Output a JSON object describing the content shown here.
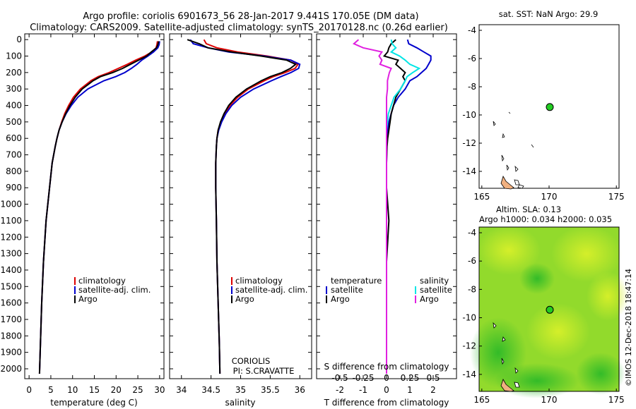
{
  "title": {
    "line1": "Argo profile: coriolis 6901673_56 28-Jan-2017 9.441S 170.05E (DM data)",
    "line2": "Climatology: CARS2009. Satellite-adjusted climatology: synTS_20170128.nc (0.26d earlier)"
  },
  "colors": {
    "climatology": "#dd0000",
    "satellite": "#0000cc",
    "argo": "#000000",
    "sal_sat": "#00e5e5",
    "sal_argo": "#e020e0",
    "land": "#f0b080",
    "marker": "#22cc22"
  },
  "depth_ticks": [
    "0",
    "100",
    "200",
    "300",
    "400",
    "500",
    "600",
    "700",
    "800",
    "900",
    "1000",
    "1100",
    "1200",
    "1300",
    "1400",
    "1500",
    "1600",
    "1700",
    "1800",
    "1900",
    "2000"
  ],
  "chart_data": [
    {
      "type": "line",
      "xlabel": "temperature (deg C)",
      "xlim": [
        -1,
        31
      ],
      "ylim": [
        2060,
        -35
      ],
      "xticks": [
        "0",
        "5",
        "10",
        "15",
        "20",
        "25",
        "30"
      ],
      "legend": [
        "climatology",
        "satellite-adj. clim.",
        "Argo"
      ],
      "series": [
        {
          "name": "climatology",
          "x": [
            29.5,
            29.4,
            29.2,
            28.2,
            26.6,
            24.5,
            22.6,
            20.5,
            18.4,
            15.9,
            14.2,
            11.8,
            10.2,
            9.1,
            8.2,
            7.5,
            6.9,
            6.4,
            6.0,
            5.3,
            4.7,
            3.9,
            3.3,
            2.9,
            2.6,
            2.4
          ],
          "y": [
            10,
            30,
            50,
            75,
            100,
            125,
            150,
            175,
            200,
            225,
            250,
            300,
            350,
            400,
            450,
            500,
            550,
            600,
            650,
            750,
            900,
            1100,
            1350,
            1600,
            1850,
            2030
          ]
        },
        {
          "name": "satellite-adj. clim.",
          "x": [
            30.0,
            29.9,
            29.6,
            28.6,
            27.3,
            25.9,
            24.8,
            23.5,
            22.0,
            19.9,
            17.2,
            13.5,
            11.2,
            9.7,
            8.5,
            7.6,
            6.9,
            6.4,
            6.0,
            5.3,
            4.7,
            3.9,
            3.3,
            2.9,
            2.6,
            2.4
          ],
          "y": [
            10,
            30,
            50,
            75,
            100,
            125,
            150,
            175,
            200,
            225,
            250,
            300,
            350,
            400,
            450,
            500,
            550,
            600,
            650,
            750,
            900,
            1100,
            1350,
            1600,
            1850,
            2030
          ]
        },
        {
          "name": "Argo",
          "x": [
            29.8,
            29.6,
            29.3,
            28.1,
            27.0,
            25.2,
            23.3,
            21.5,
            19.2,
            16.4,
            14.7,
            12.2,
            10.6,
            9.4,
            8.4,
            7.6,
            6.9,
            6.4,
            6.0,
            5.3,
            4.7,
            3.9,
            3.3,
            2.9,
            2.6,
            2.4
          ],
          "y": [
            10,
            30,
            50,
            75,
            100,
            125,
            150,
            175,
            200,
            225,
            250,
            300,
            350,
            400,
            450,
            500,
            550,
            600,
            650,
            750,
            900,
            1100,
            1350,
            1600,
            1850,
            2030
          ]
        }
      ]
    },
    {
      "type": "line",
      "xlabel": "salinity",
      "xlim": [
        33.8,
        36.2
      ],
      "ylim": [
        2060,
        -35
      ],
      "xticks": [
        "34",
        "34.5",
        "35",
        "35.5",
        "36"
      ],
      "legend": [
        "climatology",
        "satellite-adj. clim.",
        "Argo"
      ],
      "annotation": [
        "CORIOLIS",
        "PI: S.CRAVATTE"
      ],
      "series": [
        {
          "name": "climatology",
          "x": [
            34.38,
            34.42,
            34.6,
            34.95,
            35.45,
            35.85,
            35.97,
            35.92,
            35.75,
            35.55,
            35.4,
            35.13,
            34.95,
            34.82,
            34.73,
            34.67,
            34.62,
            34.6,
            34.59,
            34.58,
            34.58,
            34.59,
            34.6,
            34.62,
            34.64,
            34.65
          ],
          "y": [
            0,
            25,
            50,
            75,
            100,
            125,
            150,
            175,
            200,
            225,
            250,
            300,
            350,
            400,
            450,
            500,
            550,
            600,
            650,
            750,
            900,
            1100,
            1350,
            1600,
            1850,
            2030
          ]
        },
        {
          "name": "satellite-adj. clim.",
          "x": [
            34.15,
            34.2,
            34.45,
            34.8,
            35.4,
            35.85,
            36.0,
            35.98,
            35.85,
            35.68,
            35.52,
            35.22,
            35.0,
            34.85,
            34.75,
            34.68,
            34.63,
            34.6,
            34.59,
            34.58,
            34.58,
            34.59,
            34.6,
            34.62,
            34.64,
            34.65
          ],
          "y": [
            0,
            25,
            50,
            75,
            100,
            125,
            150,
            175,
            200,
            225,
            250,
            300,
            350,
            400,
            450,
            500,
            550,
            600,
            650,
            750,
            900,
            1100,
            1350,
            1600,
            1850,
            2030
          ]
        },
        {
          "name": "Argo",
          "x": [
            34.1,
            34.3,
            34.45,
            34.85,
            35.35,
            35.78,
            35.93,
            35.84,
            35.7,
            35.5,
            35.35,
            35.1,
            34.92,
            34.8,
            34.72,
            34.66,
            34.62,
            34.6,
            34.59,
            34.58,
            34.58,
            34.59,
            34.6,
            34.62,
            34.64,
            34.65
          ],
          "y": [
            0,
            25,
            50,
            75,
            100,
            125,
            150,
            175,
            200,
            225,
            250,
            300,
            350,
            400,
            450,
            500,
            550,
            600,
            650,
            750,
            900,
            1100,
            1350,
            1600,
            1850,
            2030
          ]
        }
      ]
    },
    {
      "type": "line",
      "xlabel": "T difference from climatology",
      "xlabel2": "S difference from climatology",
      "xlim": [
        -3,
        3
      ],
      "ylim": [
        2060,
        -35
      ],
      "xticks": [
        "-2",
        "-1",
        "0",
        "1",
        "2"
      ],
      "xticks2": [
        "-0.5",
        "-0.25",
        "0",
        "0.25",
        "0.5"
      ],
      "legend_titles": [
        "temperature",
        "salinity"
      ],
      "legend_left": [
        "satellite",
        "Argo"
      ],
      "legend_right": [
        "satellite",
        "Argo"
      ],
      "series": [
        {
          "name": "temperature satellite",
          "x": [
            0.9,
            0.95,
            1.3,
            1.6,
            1.9,
            1.9,
            1.8,
            1.7,
            1.5,
            1.3,
            1.0,
            0.8,
            0.5,
            0.3,
            0.2,
            0.1,
            0.05,
            0.03,
            0.01,
            0,
            0,
            0,
            0,
            0,
            0,
            0
          ],
          "y": [
            0,
            25,
            50,
            75,
            100,
            125,
            150,
            175,
            200,
            225,
            250,
            300,
            350,
            400,
            450,
            500,
            550,
            600,
            650,
            750,
            900,
            1100,
            1350,
            1600,
            1850,
            2030
          ]
        },
        {
          "name": "temperature Argo",
          "x": [
            0.4,
            0.2,
            0.1,
            0.05,
            -0.1,
            0.5,
            0.4,
            0.6,
            0.8,
            0.7,
            0.8,
            0.6,
            0.4,
            0.3,
            0.2,
            0.15,
            0.1,
            0.05,
            0.02,
            0,
            0,
            0.1,
            0,
            0,
            0,
            0
          ],
          "y": [
            0,
            25,
            50,
            75,
            100,
            125,
            150,
            175,
            200,
            225,
            250,
            300,
            350,
            400,
            450,
            500,
            550,
            600,
            650,
            750,
            900,
            1100,
            1350,
            1600,
            1850,
            2030
          ]
        },
        {
          "name": "salinity satellite",
          "x": [
            0.05,
            0.06,
            0.1,
            0.05,
            0.14,
            0.2,
            0.25,
            0.35,
            0.28,
            0.22,
            0.2,
            0.15,
            0.08,
            0.05,
            0.02,
            0.01,
            0,
            0,
            0,
            0,
            0,
            0,
            0,
            0,
            0,
            0
          ],
          "y": [
            0,
            25,
            50,
            75,
            100,
            125,
            150,
            175,
            200,
            225,
            250,
            300,
            350,
            400,
            450,
            500,
            550,
            600,
            650,
            750,
            900,
            1100,
            1350,
            1600,
            1850,
            2030
          ]
        },
        {
          "name": "salinity Argo",
          "x": [
            -0.3,
            -0.35,
            -0.25,
            -0.05,
            -0.08,
            -0.05,
            -0.07,
            0.05,
            0.03,
            0.02,
            0.01,
            0.01,
            0,
            0,
            0,
            0,
            0,
            0,
            0,
            0,
            0,
            0,
            0,
            0,
            0,
            0
          ],
          "y": [
            0,
            25,
            50,
            75,
            100,
            125,
            150,
            175,
            200,
            225,
            250,
            300,
            350,
            400,
            450,
            500,
            550,
            600,
            650,
            750,
            900,
            1100,
            1350,
            1600,
            1850,
            2030
          ]
        }
      ]
    },
    {
      "type": "scatter",
      "title": "sat. SST: NaN Argo: 29.9",
      "xlim": [
        164.8,
        175.2
      ],
      "ylim": [
        -15.2,
        -3.6
      ],
      "xticks": [
        "165",
        "170",
        "175"
      ],
      "yticks": [
        "-4",
        "-6",
        "-8",
        "-10",
        "-12",
        "-14"
      ],
      "points": [
        {
          "x": 170.05,
          "y": -9.441
        }
      ]
    },
    {
      "type": "heatmap",
      "title": "Altim. SLA: 0.13",
      "subtitle": "Argo h1000: 0.034 h2000: 0.035",
      "xlim": [
        164.8,
        175.2
      ],
      "ylim": [
        -15.2,
        -3.6
      ],
      "xticks": [
        "165",
        "170",
        "175"
      ],
      "yticks": [
        "-4",
        "-6",
        "-8",
        "-10",
        "-12",
        "-14"
      ],
      "points": [
        {
          "x": 170.05,
          "y": -9.441
        }
      ]
    }
  ],
  "watermark": "©IMOS 12-Dec-2018 18:47:14"
}
